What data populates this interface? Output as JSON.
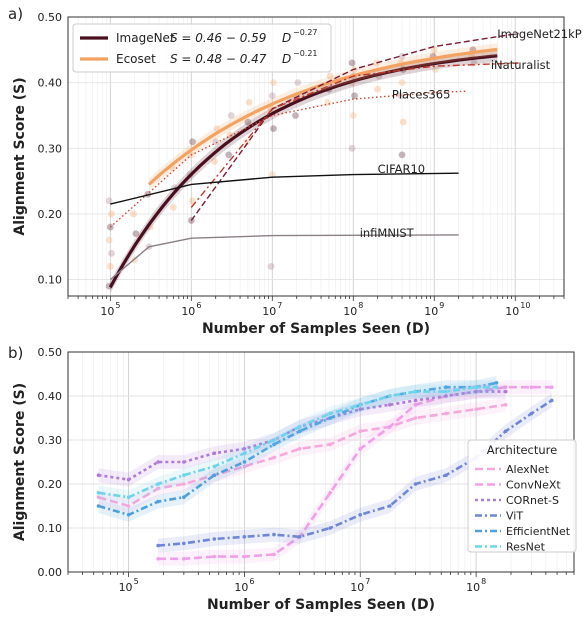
{
  "chart_data": [
    {
      "panel": "a)",
      "type": "scatter",
      "xlabel": "Number of Samples Seen (D)",
      "ylabel": "Alignment Score (S)",
      "x_scale": "log",
      "xlim": [
        30000,
        40000000000
      ],
      "ylim": [
        0.075,
        0.5
      ],
      "yticks": [
        "0.10",
        "0.20",
        "0.30",
        "0.40",
        "0.50"
      ],
      "xticks": [
        {
          "value": 100000,
          "base": "10",
          "exp": "5"
        },
        {
          "value": 1000000,
          "base": "10",
          "exp": "6"
        },
        {
          "value": 10000000,
          "base": "10",
          "exp": "7"
        },
        {
          "value": 100000000,
          "base": "10",
          "exp": "8"
        },
        {
          "value": 1000000000,
          "base": "10",
          "exp": "9"
        },
        {
          "value": 10000000000,
          "base": "10",
          "exp": "10"
        }
      ],
      "grid": true,
      "legend_position": "top-left",
      "legend": [
        {
          "label": "ImageNet",
          "formula_text": "S = 0.46 − 0.59",
          "formula_var": "D",
          "formula_exp": "−0.27",
          "color": "#4a0f1f"
        },
        {
          "label": "Ecoset",
          "formula_text": "S = 0.48 − 0.47",
          "formula_var": "D",
          "formula_exp": "−0.21",
          "color": "#f4a261"
        }
      ],
      "series": [
        {
          "name": "ImageNet",
          "style": "solid-thick",
          "color": "#4a0f1f",
          "a": 0.46,
          "b": 0.59,
          "alpha": 0.27,
          "x_range": [
            100000,
            6000000000
          ]
        },
        {
          "name": "Ecoset",
          "style": "solid-thick",
          "color": "#f4a261",
          "a": 0.48,
          "b": 0.47,
          "alpha": 0.21,
          "x_range": [
            300000,
            6000000000
          ]
        },
        {
          "name": "ImageNet21kP",
          "style": "dashed",
          "color": "#7a1b33",
          "points": [
            [
              1000000,
              0.19
            ],
            [
              10000000,
              0.36
            ],
            [
              100000000,
              0.42
            ],
            [
              1000000000,
              0.455
            ],
            [
              11000000000,
              0.475
            ]
          ]
        },
        {
          "name": "iNaturalist",
          "style": "dashdot",
          "color": "#c0392b",
          "points": [
            [
              1000000,
              0.21
            ],
            [
              10000000,
              0.36
            ],
            [
              100000000,
              0.41
            ],
            [
              1000000000,
              0.425
            ],
            [
              11000000000,
              0.43
            ]
          ]
        },
        {
          "name": "Places365",
          "style": "dotted",
          "color": "#d1452e",
          "points": [
            [
              100000,
              0.18
            ],
            [
              1000000,
              0.29
            ],
            [
              10000000,
              0.35
            ],
            [
              100000000,
              0.375
            ],
            [
              1000000000,
              0.385
            ],
            [
              2500000000,
              0.387
            ]
          ]
        },
        {
          "name": "CIFAR10",
          "style": "solid",
          "color": "#111111",
          "points": [
            [
              100000,
              0.215
            ],
            [
              1000000,
              0.245
            ],
            [
              10000000,
              0.256
            ],
            [
              100000000,
              0.26
            ],
            [
              2000000000,
              0.262
            ]
          ]
        },
        {
          "name": "infiMNIST",
          "style": "solid",
          "color": "#8a7f87",
          "points": [
            [
              100000,
              0.1
            ],
            [
              300000,
              0.15
            ],
            [
              1000000,
              0.163
            ],
            [
              10000000,
              0.167
            ],
            [
              2000000000,
              0.168
            ]
          ]
        }
      ],
      "annotations": [
        "ImageNet21kP",
        "iNaturalist",
        "Places365",
        "CIFAR10",
        "infiMNIST"
      ],
      "scatter_points": [
        [
          100000,
          0.09
        ],
        [
          100000,
          0.12
        ],
        [
          100000,
          0.14
        ],
        [
          100000,
          0.16
        ],
        [
          100000,
          0.18
        ],
        [
          100000,
          0.2
        ],
        [
          100000,
          0.22
        ],
        [
          200000,
          0.13
        ],
        [
          200000,
          0.17
        ],
        [
          200000,
          0.2
        ],
        [
          300000,
          0.15
        ],
        [
          300000,
          0.18
        ],
        [
          300000,
          0.23
        ],
        [
          600000,
          0.21
        ],
        [
          600000,
          0.24
        ],
        [
          600000,
          0.27
        ],
        [
          1000000,
          0.19
        ],
        [
          1000000,
          0.22
        ],
        [
          1000000,
          0.26
        ],
        [
          1000000,
          0.29
        ],
        [
          1000000,
          0.31
        ],
        [
          2000000,
          0.28
        ],
        [
          2000000,
          0.31
        ],
        [
          2000000,
          0.33
        ],
        [
          3000000,
          0.29
        ],
        [
          3000000,
          0.32
        ],
        [
          3000000,
          0.35
        ],
        [
          5000000,
          0.31
        ],
        [
          5000000,
          0.34
        ],
        [
          5000000,
          0.37
        ],
        [
          10000000,
          0.12
        ],
        [
          10000000,
          0.26
        ],
        [
          10000000,
          0.33
        ],
        [
          10000000,
          0.36
        ],
        [
          10000000,
          0.38
        ],
        [
          10000000,
          0.4
        ],
        [
          20000000,
          0.35
        ],
        [
          20000000,
          0.38
        ],
        [
          20000000,
          0.4
        ],
        [
          50000000,
          0.37
        ],
        [
          50000000,
          0.39
        ],
        [
          50000000,
          0.41
        ],
        [
          100000000,
          0.3
        ],
        [
          100000000,
          0.35
        ],
        [
          100000000,
          0.38
        ],
        [
          100000000,
          0.4
        ],
        [
          100000000,
          0.41
        ],
        [
          100000000,
          0.42
        ],
        [
          100000000,
          0.43
        ],
        [
          200000000,
          0.39
        ],
        [
          200000000,
          0.41
        ],
        [
          200000000,
          0.43
        ],
        [
          400000000,
          0.29
        ],
        [
          400000000,
          0.34
        ],
        [
          400000000,
          0.38
        ],
        [
          400000000,
          0.4
        ],
        [
          400000000,
          0.42
        ],
        [
          400000000,
          0.43
        ],
        [
          400000000,
          0.44
        ],
        [
          1000000000,
          0.42
        ],
        [
          1000000000,
          0.44
        ],
        [
          1000000000,
          0.45
        ],
        [
          3000000000,
          0.43
        ],
        [
          3000000000,
          0.44
        ],
        [
          3000000000,
          0.45
        ]
      ]
    },
    {
      "panel": "b)",
      "type": "line",
      "xlabel": "Number of Samples Seen (D)",
      "ylabel": "Alignment Score (S)",
      "x_scale": "log",
      "xlim": [
        30000,
        700000000
      ],
      "ylim": [
        0.0,
        0.5
      ],
      "yticks": [
        "0.00",
        "0.10",
        "0.20",
        "0.30",
        "0.40",
        "0.50"
      ],
      "xticks": [
        {
          "value": 100000,
          "base": "10",
          "exp": "5"
        },
        {
          "value": 1000000,
          "base": "10",
          "exp": "6"
        },
        {
          "value": 10000000,
          "base": "10",
          "exp": "7"
        },
        {
          "value": 100000000,
          "base": "10",
          "exp": "8"
        }
      ],
      "grid": true,
      "legend_position": "bottom-right",
      "legend_title": "Architecture",
      "series": [
        {
          "name": "AlexNet",
          "color": "#f5a8dc",
          "x": [
            55000,
            100000,
            180000,
            300000,
            550000,
            1000000,
            1800000,
            3000000,
            5500000,
            10000000,
            18000000,
            30000000,
            55000000,
            100000000,
            180000000
          ],
          "y": [
            0.17,
            0.15,
            0.19,
            0.2,
            0.22,
            0.24,
            0.26,
            0.28,
            0.29,
            0.32,
            0.33,
            0.35,
            0.36,
            0.37,
            0.38
          ]
        },
        {
          "name": "ConvNeXt",
          "color": "#f0a0e8",
          "x": [
            180000,
            300000,
            550000,
            1000000,
            1800000,
            3000000,
            5500000,
            10000000,
            18000000,
            30000000,
            55000000,
            100000000,
            180000000,
            300000000,
            450000000
          ],
          "y": [
            0.03,
            0.03,
            0.035,
            0.035,
            0.04,
            0.08,
            0.18,
            0.28,
            0.33,
            0.38,
            0.4,
            0.41,
            0.42,
            0.42,
            0.42
          ]
        },
        {
          "name": "CORnet-S",
          "color": "#b07ad8",
          "x": [
            55000,
            100000,
            180000,
            300000,
            550000,
            1000000,
            1800000,
            3000000,
            5500000,
            10000000,
            18000000,
            30000000,
            55000000,
            100000000,
            180000000
          ],
          "y": [
            0.22,
            0.21,
            0.25,
            0.25,
            0.27,
            0.28,
            0.3,
            0.33,
            0.35,
            0.37,
            0.38,
            0.39,
            0.4,
            0.41,
            0.41
          ]
        },
        {
          "name": "ViT",
          "color": "#6f86d6",
          "x": [
            180000,
            300000,
            550000,
            1000000,
            1800000,
            3000000,
            5500000,
            10000000,
            18000000,
            30000000,
            55000000,
            100000000,
            180000000,
            300000000,
            450000000
          ],
          "y": [
            0.06,
            0.065,
            0.075,
            0.08,
            0.085,
            0.08,
            0.1,
            0.13,
            0.15,
            0.2,
            0.22,
            0.26,
            0.32,
            0.36,
            0.39
          ]
        },
        {
          "name": "EfficientNet",
          "color": "#4f9fe0",
          "x": [
            55000,
            100000,
            180000,
            300000,
            550000,
            1000000,
            1800000,
            3000000,
            5500000,
            10000000,
            18000000,
            30000000,
            55000000,
            100000000,
            150000000
          ],
          "y": [
            0.15,
            0.13,
            0.16,
            0.17,
            0.22,
            0.25,
            0.29,
            0.32,
            0.35,
            0.38,
            0.4,
            0.41,
            0.42,
            0.42,
            0.43
          ]
        },
        {
          "name": "ResNet",
          "color": "#6fd3ec",
          "x": [
            55000,
            100000,
            180000,
            300000,
            550000,
            1000000,
            1800000,
            3000000,
            5500000,
            10000000,
            18000000,
            30000000,
            55000000,
            100000000,
            150000000
          ],
          "y": [
            0.18,
            0.17,
            0.2,
            0.22,
            0.24,
            0.27,
            0.3,
            0.33,
            0.36,
            0.38,
            0.4,
            0.41,
            0.41,
            0.42,
            0.42
          ]
        }
      ]
    }
  ]
}
